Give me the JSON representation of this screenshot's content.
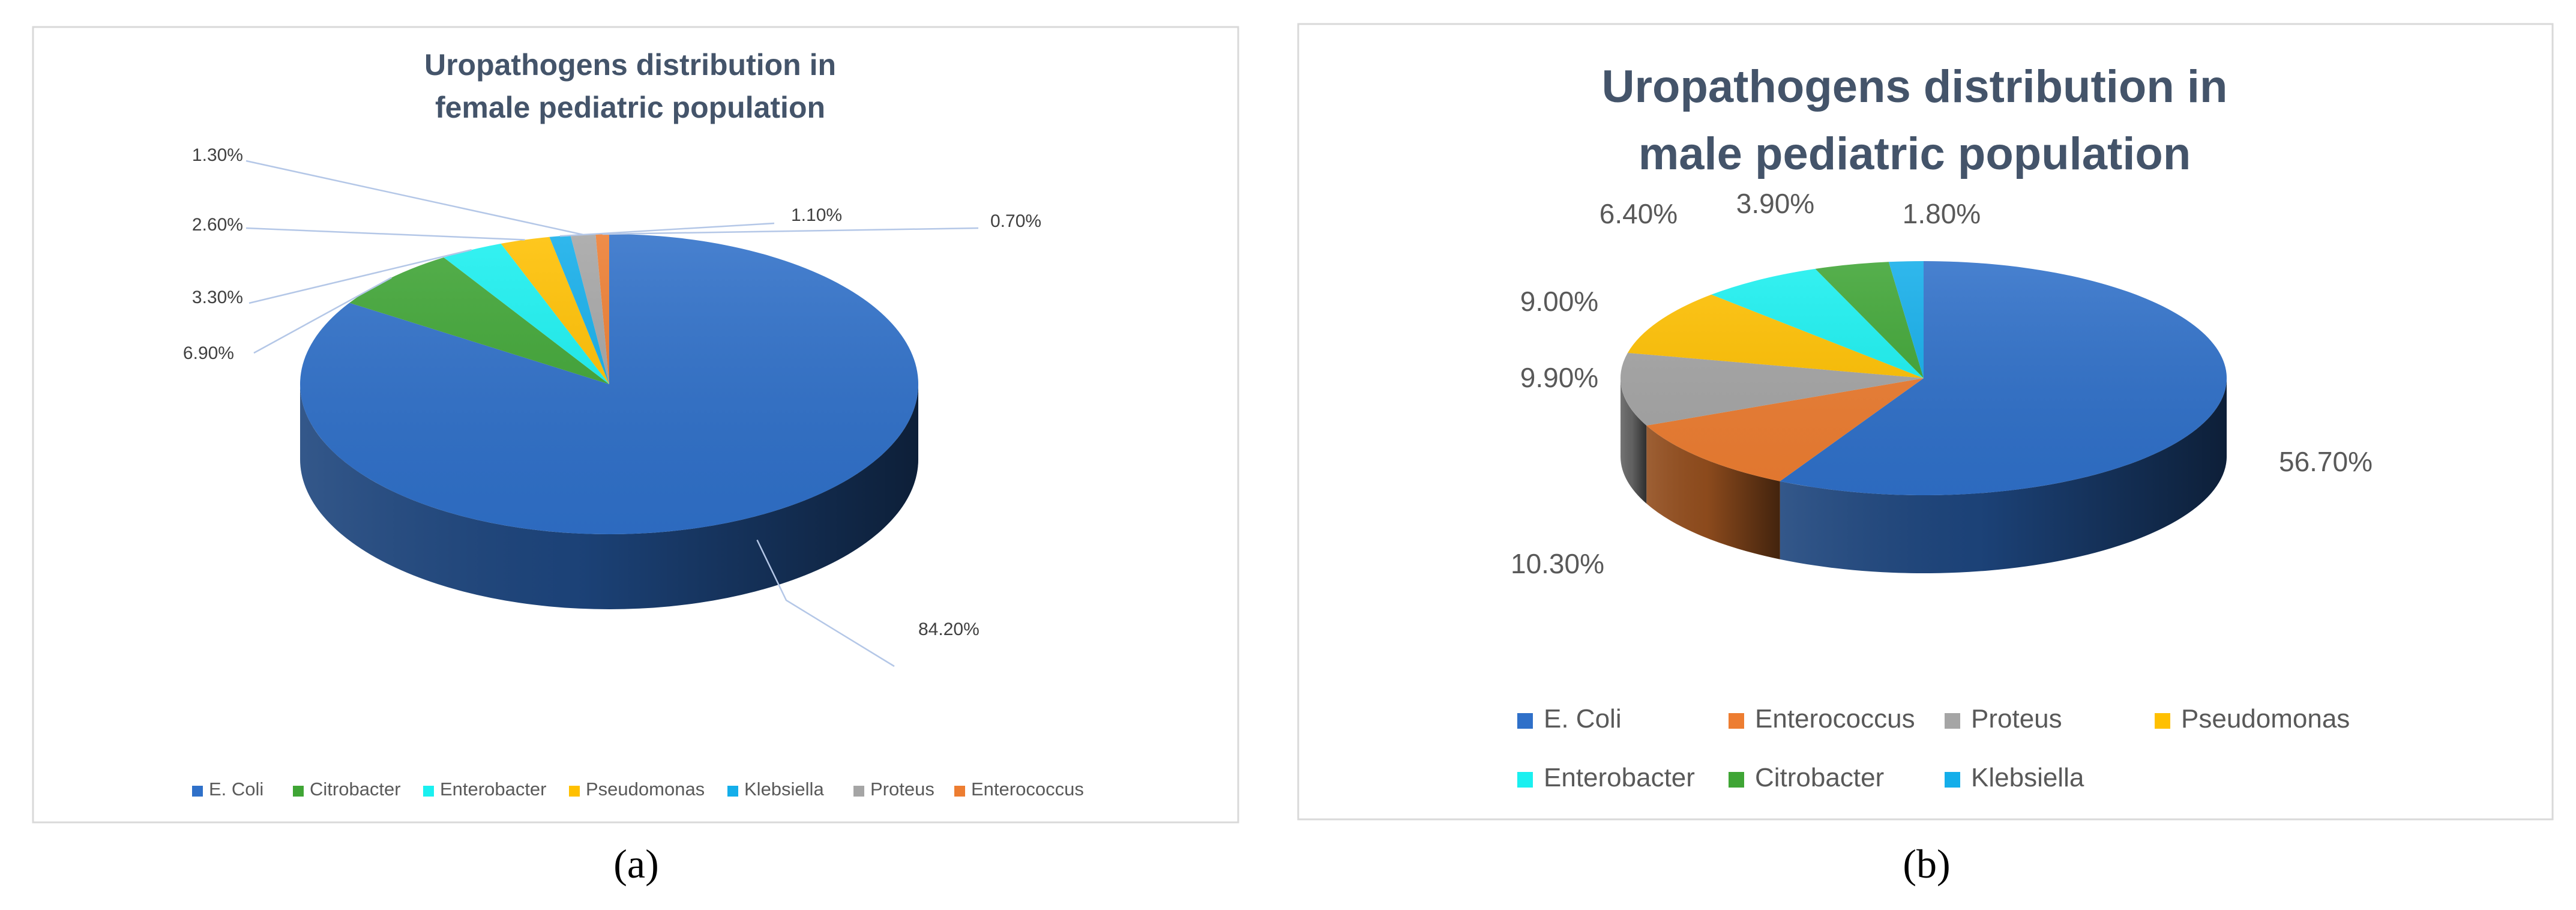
{
  "chart_data": [
    {
      "type": "pie",
      "title_lines": [
        "Uropathogens distribution in",
        "female pediatric  population"
      ],
      "categories": [
        "E. Coli",
        "Citrobacter",
        "Enterobacter",
        "Pseudomonas",
        "Klebsiella",
        "Proteus",
        "Enterococcus"
      ],
      "values": [
        84.2,
        6.9,
        3.3,
        2.6,
        1.1,
        1.3,
        0.7
      ],
      "labels": [
        "84.20%",
        "6.90%",
        "3.30%",
        "2.60%",
        "1.10%",
        "1.30%",
        "0.70%"
      ],
      "legend": [
        "E. Coli",
        "Citrobacter",
        "Enterobacter",
        "Pseudomonas",
        "Klebsiella",
        "Proteus",
        "Enterococcus"
      ],
      "colors": [
        "#2F70C9",
        "#3FA535",
        "#1AF0F0",
        "#FFC000",
        "#14AEEA",
        "#A5A5A5",
        "#ED7D31"
      ],
      "legend_position": "bottom",
      "caption": "(a)"
    },
    {
      "type": "pie",
      "title_lines": [
        "Uropathogens distribution in",
        "male pediatric population"
      ],
      "categories": [
        "E. Coli",
        "Enterococcus",
        "Proteus",
        "Pseudomonas",
        "Enterobacter",
        "Citrobacter",
        "Klebsiella"
      ],
      "values": [
        56.7,
        10.3,
        9.9,
        9.0,
        6.4,
        3.9,
        1.8
      ],
      "labels": [
        "56.70%",
        "10.30%",
        "9.90%",
        "9.00%",
        "6.40%",
        "3.90%",
        "1.80%"
      ],
      "legend": [
        "E. Coli",
        "Enterococcus",
        "Proteus",
        "Pseudomonas",
        "Enterobacter",
        "Citrobacter",
        "Klebsiella"
      ],
      "colors": [
        "#2F70C9",
        "#ED7D31",
        "#A5A5A5",
        "#FFC000",
        "#1AF0F0",
        "#3FA535",
        "#14AEEA"
      ],
      "legend_position": "bottom",
      "caption": "(b)"
    }
  ]
}
